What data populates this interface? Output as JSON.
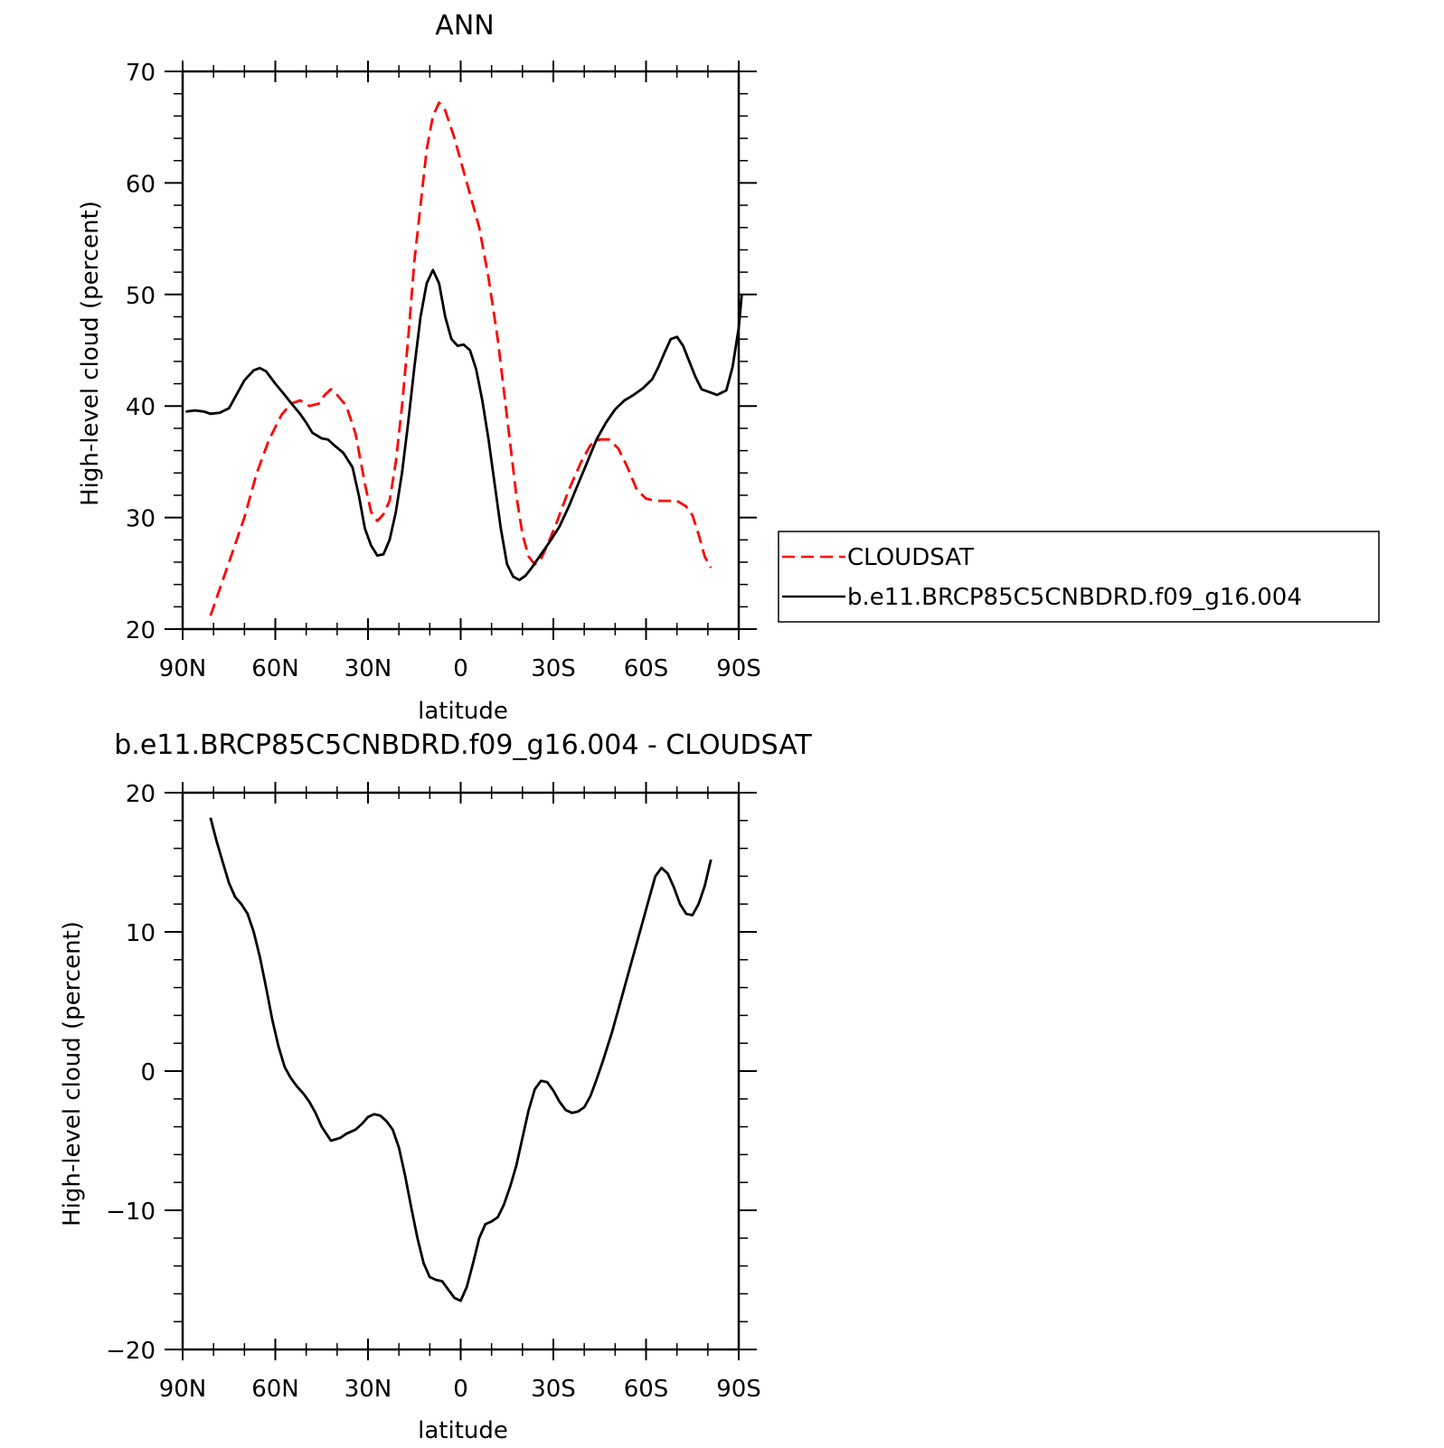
{
  "chart_data": [
    {
      "type": "line",
      "title": "ANN",
      "xlabel": "latitude",
      "ylabel": "High-level cloud (percent)",
      "xlim": [
        90,
        -90
      ],
      "ylim": [
        20,
        70
      ],
      "x_ticks": [
        90,
        60,
        30,
        0,
        -30,
        -60,
        -90
      ],
      "x_tick_labels": [
        "90N",
        "60N",
        "30N",
        "0",
        "30S",
        "60S",
        "90S"
      ],
      "y_ticks": [
        20,
        30,
        40,
        50,
        60,
        70
      ],
      "y_tick_labels": [
        "20",
        "30",
        "40",
        "50",
        "60",
        "70"
      ],
      "legend_position": "right",
      "series": [
        {
          "name": "CLOUDSAT",
          "color": "#ff0000",
          "dash": "dashed",
          "points": [
            [
              81,
              21.2
            ],
            [
              75,
              26
            ],
            [
              70,
              30
            ],
            [
              66,
              34
            ],
            [
              62,
              37
            ],
            [
              58,
              39.2
            ],
            [
              55,
              40.2
            ],
            [
              52,
              40.5
            ],
            [
              49,
              40
            ],
            [
              46,
              40.2
            ],
            [
              44,
              41
            ],
            [
              42,
              41.5
            ],
            [
              40,
              41
            ],
            [
              37,
              40
            ],
            [
              34,
              37.5
            ],
            [
              31,
              33
            ],
            [
              29,
              30.5
            ],
            [
              27,
              29.7
            ],
            [
              25,
              30.3
            ],
            [
              23,
              31.5
            ],
            [
              21,
              35
            ],
            [
              19,
              40
            ],
            [
              17,
              46
            ],
            [
              15,
              53
            ],
            [
              13,
              58
            ],
            [
              11,
              63
            ],
            [
              9,
              66
            ],
            [
              7,
              67.2
            ],
            [
              5,
              66.5
            ],
            [
              2,
              64
            ],
            [
              0,
              62
            ],
            [
              -3,
              59
            ],
            [
              -6,
              56
            ],
            [
              -9,
              51.5
            ],
            [
              -12,
              46
            ],
            [
              -15,
              39
            ],
            [
              -18,
              32
            ],
            [
              -20,
              28.5
            ],
            [
              -22,
              26.5
            ],
            [
              -24,
              25.8
            ],
            [
              -26,
              26.3
            ],
            [
              -28,
              27.5
            ],
            [
              -31,
              29.5
            ],
            [
              -35,
              32.5
            ],
            [
              -39,
              35
            ],
            [
              -42,
              36.5
            ],
            [
              -45,
              37
            ],
            [
              -48,
              37
            ],
            [
              -51,
              36.2
            ],
            [
              -54,
              34.5
            ],
            [
              -57,
              32.5
            ],
            [
              -60,
              31.7
            ],
            [
              -63,
              31.5
            ],
            [
              -66,
              31.5
            ],
            [
              -70,
              31.5
            ],
            [
              -73,
              31
            ],
            [
              -75,
              30.2
            ],
            [
              -77,
              28.5
            ],
            [
              -79,
              26.5
            ],
            [
              -81,
              25.5
            ]
          ]
        },
        {
          "name": "b.e11.BRCP85C5CNBDRD.f09_g16.004",
          "color": "#000000",
          "dash": "solid",
          "points": [
            [
              89,
              39.5
            ],
            [
              86,
              39.6
            ],
            [
              83,
              39.5
            ],
            [
              81,
              39.3
            ],
            [
              78,
              39.4
            ],
            [
              75,
              39.8
            ],
            [
              73,
              40.8
            ],
            [
              70,
              42.3
            ],
            [
              67,
              43.2
            ],
            [
              65,
              43.4
            ],
            [
              63,
              43.1
            ],
            [
              60,
              42
            ],
            [
              57,
              41
            ],
            [
              55,
              40.3
            ],
            [
              52,
              39.3
            ],
            [
              50,
              38.5
            ],
            [
              48,
              37.6
            ],
            [
              45,
              37.1
            ],
            [
              43,
              37
            ],
            [
              41,
              36.5
            ],
            [
              38,
              35.8
            ],
            [
              35,
              34.5
            ],
            [
              33,
              32
            ],
            [
              31,
              29
            ],
            [
              29,
              27.5
            ],
            [
              27,
              26.6
            ],
            [
              25,
              26.7
            ],
            [
              23,
              28
            ],
            [
              21,
              30.5
            ],
            [
              19,
              34
            ],
            [
              17,
              38.5
            ],
            [
              15,
              43.5
            ],
            [
              13,
              48
            ],
            [
              11,
              51
            ],
            [
              9,
              52.2
            ],
            [
              7,
              51
            ],
            [
              5,
              48
            ],
            [
              3,
              46
            ],
            [
              1,
              45.4
            ],
            [
              -1,
              45.5
            ],
            [
              -3,
              45
            ],
            [
              -5,
              43.3
            ],
            [
              -7,
              40.5
            ],
            [
              -9,
              37
            ],
            [
              -11,
              33
            ],
            [
              -13,
              29
            ],
            [
              -15,
              25.8
            ],
            [
              -17,
              24.7
            ],
            [
              -19,
              24.4
            ],
            [
              -21,
              24.8
            ],
            [
              -23,
              25.5
            ],
            [
              -26,
              26.7
            ],
            [
              -29,
              27.9
            ],
            [
              -32,
              29.2
            ],
            [
              -35,
              31
            ],
            [
              -38,
              33
            ],
            [
              -41,
              35
            ],
            [
              -44,
              37
            ],
            [
              -47,
              38.5
            ],
            [
              -50,
              39.7
            ],
            [
              -53,
              40.5
            ],
            [
              -56,
              41
            ],
            [
              -59,
              41.6
            ],
            [
              -62,
              42.4
            ],
            [
              -64,
              43.5
            ],
            [
              -66,
              44.8
            ],
            [
              -68,
              46
            ],
            [
              -70,
              46.2
            ],
            [
              -72,
              45.4
            ],
            [
              -74,
              44
            ],
            [
              -76,
              42.6
            ],
            [
              -78,
              41.5
            ],
            [
              -81,
              41.2
            ],
            [
              -83,
              41
            ],
            [
              -86,
              41.4
            ],
            [
              -88,
              43.5
            ],
            [
              -90,
              47
            ],
            [
              -91,
              50
            ]
          ]
        }
      ]
    },
    {
      "type": "line",
      "title": "b.e11.BRCP85C5CNBDRD.f09_g16.004 - CLOUDSAT",
      "xlabel": "latitude",
      "ylabel": "High-level cloud (percent)",
      "xlim": [
        90,
        -90
      ],
      "ylim": [
        -20,
        20
      ],
      "x_ticks": [
        90,
        60,
        30,
        0,
        -30,
        -60,
        -90
      ],
      "x_tick_labels": [
        "90N",
        "60N",
        "30N",
        "0",
        "30S",
        "60S",
        "90S"
      ],
      "y_ticks": [
        -20,
        -10,
        0,
        10,
        20
      ],
      "y_tick_labels": [
        "-20",
        "-10",
        "0",
        "10",
        "20"
      ],
      "series": [
        {
          "color": "#000000",
          "dash": "solid",
          "points": [
            [
              81,
              18.2
            ],
            [
              79,
              16.5
            ],
            [
              77,
              15
            ],
            [
              75,
              13.5
            ],
            [
              73,
              12.5
            ],
            [
              71,
              12
            ],
            [
              69,
              11.3
            ],
            [
              67,
              10
            ],
            [
              65,
              8.2
            ],
            [
              63,
              6
            ],
            [
              61,
              3.7
            ],
            [
              59,
              1.8
            ],
            [
              57,
              0.3
            ],
            [
              55,
              -0.5
            ],
            [
              53,
              -1.1
            ],
            [
              51,
              -1.6
            ],
            [
              49,
              -2.2
            ],
            [
              47,
              -3
            ],
            [
              45,
              -4
            ],
            [
              42,
              -5
            ],
            [
              39,
              -4.8
            ],
            [
              37,
              -4.5
            ],
            [
              34,
              -4.2
            ],
            [
              32,
              -3.8
            ],
            [
              30,
              -3.3
            ],
            [
              28,
              -3.1
            ],
            [
              26,
              -3.2
            ],
            [
              24,
              -3.6
            ],
            [
              22,
              -4.2
            ],
            [
              20,
              -5.5
            ],
            [
              18,
              -7.5
            ],
            [
              16,
              -9.8
            ],
            [
              14,
              -12
            ],
            [
              12,
              -13.8
            ],
            [
              10,
              -14.8
            ],
            [
              8,
              -15
            ],
            [
              6,
              -15.1
            ],
            [
              4,
              -15.7
            ],
            [
              2,
              -16.3
            ],
            [
              0,
              -16.5
            ],
            [
              -2,
              -15.5
            ],
            [
              -4,
              -13.8
            ],
            [
              -6,
              -12
            ],
            [
              -8,
              -11
            ],
            [
              -10,
              -10.8
            ],
            [
              -12,
              -10.5
            ],
            [
              -14,
              -9.6
            ],
            [
              -16,
              -8.3
            ],
            [
              -18,
              -6.8
            ],
            [
              -20,
              -4.8
            ],
            [
              -22,
              -2.8
            ],
            [
              -24,
              -1.3
            ],
            [
              -26,
              -0.7
            ],
            [
              -28,
              -0.8
            ],
            [
              -30,
              -1.4
            ],
            [
              -32,
              -2.2
            ],
            [
              -34,
              -2.8
            ],
            [
              -36,
              -3
            ],
            [
              -38,
              -2.9
            ],
            [
              -40,
              -2.6
            ],
            [
              -42,
              -1.8
            ],
            [
              -44,
              -0.6
            ],
            [
              -46,
              0.7
            ],
            [
              -49,
              2.8
            ],
            [
              -52,
              5.2
            ],
            [
              -55,
              7.6
            ],
            [
              -58,
              10
            ],
            [
              -61,
              12.4
            ],
            [
              -63,
              14
            ],
            [
              -65,
              14.6
            ],
            [
              -67,
              14.2
            ],
            [
              -69,
              13.2
            ],
            [
              -71,
              12
            ],
            [
              -73,
              11.3
            ],
            [
              -75,
              11.2
            ],
            [
              -77,
              12
            ],
            [
              -79,
              13.3
            ],
            [
              -81,
              15.2
            ]
          ]
        }
      ]
    }
  ]
}
